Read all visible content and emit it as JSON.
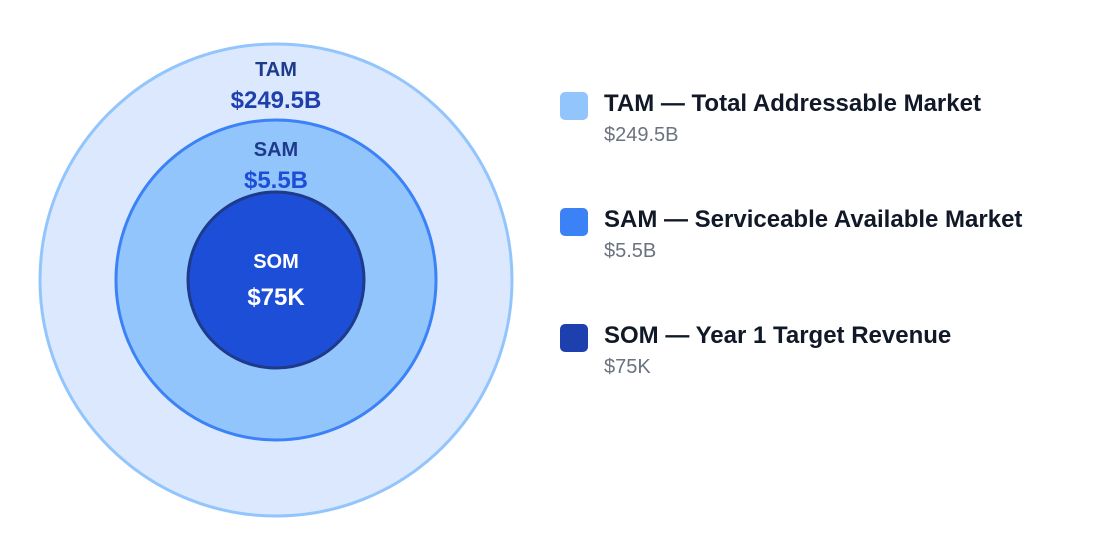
{
  "rings": [
    {
      "name": "TAM",
      "value": "$249.5B",
      "fill": "#dbe8fd",
      "stroke": "#93c5fd",
      "name_color": "#1e3a8a",
      "value_color": "#1e40af"
    },
    {
      "name": "SAM",
      "value": "$5.5B",
      "fill": "#93c5fd",
      "stroke": "#3b82f6",
      "name_color": "#1e3a8a",
      "value_color": "#1d4ed8"
    },
    {
      "name": "SOM",
      "value": "$75K",
      "fill": "#1d4ed8",
      "stroke": "#1e3a8a",
      "name_color": "#ffffff",
      "value_color": "#ffffff"
    }
  ],
  "legend": [
    {
      "title": "TAM — Total Addressable Market",
      "value": "$249.5B",
      "color": "#93c5fd"
    },
    {
      "title": "SAM — Serviceable Available Market",
      "value": "$5.5B",
      "color": "#3b82f6"
    },
    {
      "title": "SOM — Year 1 Target Revenue",
      "value": "$75K",
      "color": "#1e40af"
    }
  ]
}
